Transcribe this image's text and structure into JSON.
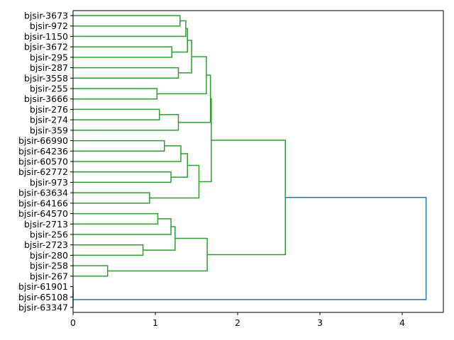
{
  "chart_data": {
    "type": "dendrogram",
    "orientation": "left",
    "title": "",
    "xlabel": "",
    "ylabel": "",
    "xlim": [
      0,
      4.5
    ],
    "xticks": [
      "0",
      "1",
      "2",
      "3",
      "4"
    ],
    "leaf_labels": [
      "bjsir-3673",
      "bjsir-972",
      "bjsir-1150",
      "bjsir-3672",
      "bjsir-295",
      "bjsir-287",
      "bjsir-3558",
      "bjsir-255",
      "bjsir-3666",
      "bjsir-276",
      "bjsir-274",
      "bjsir-359",
      "bjsir-66990",
      "bjsir-64236",
      "bjsir-60570",
      "bjsir-62772",
      "bjsir-973",
      "bjsir-63634",
      "bjsir-64166",
      "bjsir-64570",
      "bjsir-2713",
      "bjsir-256",
      "bjsir-2723",
      "bjsir-280",
      "bjsir-258",
      "bjsir-267",
      "bjsir-61901",
      "bjsir-65108",
      "bjsir-63347"
    ],
    "linkage": [
      [
        0,
        1,
        1.3
      ],
      [
        29,
        2,
        1.37
      ],
      [
        3,
        4,
        1.2
      ],
      [
        30,
        31,
        1.39
      ],
      [
        5,
        6,
        1.28
      ],
      [
        32,
        33,
        1.44
      ],
      [
        7,
        8,
        1.02
      ],
      [
        34,
        35,
        1.62
      ],
      [
        9,
        10,
        1.05
      ],
      [
        37,
        11,
        1.28
      ],
      [
        36,
        38,
        1.67
      ],
      [
        12,
        13,
        1.11
      ],
      [
        40,
        14,
        1.31
      ],
      [
        15,
        16,
        1.19
      ],
      [
        41,
        42,
        1.39
      ],
      [
        17,
        18,
        0.93
      ],
      [
        43,
        44,
        1.53
      ],
      [
        39,
        45,
        1.68
      ],
      [
        19,
        20,
        1.03
      ],
      [
        47,
        21,
        1.19
      ],
      [
        22,
        23,
        0.85
      ],
      [
        48,
        49,
        1.24
      ],
      [
        24,
        25,
        0.42
      ],
      [
        50,
        51,
        1.63
      ],
      [
        46,
        52,
        2.58
      ],
      [
        26,
        27,
        0.0
      ],
      [
        54,
        28,
        0.0
      ],
      [
        53,
        55,
        4.29
      ]
    ],
    "cluster_color": "#2ca02c",
    "above_threshold_color": "#1f77b4",
    "blue_links": [
      54,
      55,
      56
    ],
    "grid": false
  }
}
